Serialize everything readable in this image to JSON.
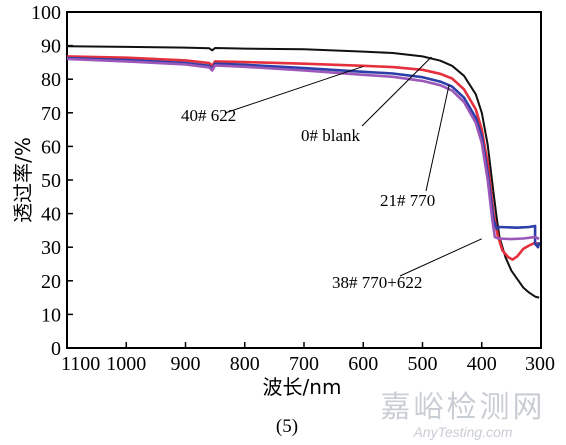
{
  "chart_data": {
    "type": "line",
    "xlabel": "波长/nm",
    "ylabel": "透过率/%",
    "caption": "(5)",
    "xlim": [
      1100,
      300
    ],
    "ylim": [
      0,
      100
    ],
    "xticks": [
      1100,
      1000,
      900,
      800,
      700,
      600,
      500,
      400,
      300
    ],
    "yticks": [
      0,
      10,
      20,
      30,
      40,
      50,
      60,
      70,
      80,
      90,
      100
    ],
    "grid": false,
    "series": [
      {
        "name": "0# blank",
        "color": "#111111",
        "points": [
          [
            1100,
            89.8
          ],
          [
            1000,
            89.6
          ],
          [
            900,
            89.4
          ],
          [
            860,
            89.2
          ],
          [
            855,
            88.6
          ],
          [
            850,
            89.3
          ],
          [
            800,
            89.1
          ],
          [
            700,
            88.9
          ],
          [
            600,
            88.2
          ],
          [
            550,
            87.8
          ],
          [
            500,
            86.8
          ],
          [
            470,
            85.5
          ],
          [
            450,
            84.0
          ],
          [
            430,
            81.0
          ],
          [
            410,
            75.5
          ],
          [
            400,
            70.0
          ],
          [
            390,
            60.5
          ],
          [
            380,
            46.0
          ],
          [
            375,
            39.0
          ],
          [
            370,
            33.0
          ],
          [
            360,
            27.0
          ],
          [
            350,
            23.0
          ],
          [
            340,
            20.5
          ],
          [
            330,
            18.0
          ],
          [
            320,
            16.5
          ],
          [
            310,
            15.3
          ],
          [
            303,
            15.0
          ]
        ]
      },
      {
        "name": "40# 622",
        "color": "#e5303d",
        "points": [
          [
            1100,
            86.8
          ],
          [
            1000,
            86.4
          ],
          [
            900,
            85.6
          ],
          [
            860,
            84.8
          ],
          [
            855,
            84.0
          ],
          [
            850,
            85.3
          ],
          [
            800,
            85.1
          ],
          [
            700,
            84.6
          ],
          [
            600,
            84.0
          ],
          [
            550,
            83.6
          ],
          [
            500,
            82.8
          ],
          [
            470,
            81.6
          ],
          [
            450,
            80.2
          ],
          [
            430,
            77.0
          ],
          [
            410,
            71.0
          ],
          [
            400,
            65.0
          ],
          [
            390,
            55.0
          ],
          [
            380,
            40.0
          ],
          [
            373,
            33.5
          ],
          [
            365,
            29.0
          ],
          [
            355,
            27.0
          ],
          [
            348,
            26.3
          ],
          [
            340,
            27.3
          ],
          [
            330,
            29.5
          ],
          [
            320,
            30.5
          ],
          [
            310,
            31.3
          ],
          [
            303,
            30.8
          ]
        ]
      },
      {
        "name": "21# 770",
        "color": "#2c3ea8",
        "points": [
          [
            1100,
            86.3
          ],
          [
            1000,
            85.7
          ],
          [
            900,
            84.8
          ],
          [
            860,
            84.0
          ],
          [
            855,
            83.0
          ],
          [
            850,
            84.6
          ],
          [
            800,
            84.3
          ],
          [
            700,
            83.3
          ],
          [
            600,
            82.2
          ],
          [
            550,
            81.7
          ],
          [
            500,
            80.6
          ],
          [
            470,
            79.3
          ],
          [
            450,
            77.8
          ],
          [
            430,
            74.5
          ],
          [
            410,
            68.5
          ],
          [
            400,
            63.0
          ],
          [
            390,
            52.0
          ],
          [
            380,
            38.0
          ],
          [
            375,
            35.5
          ],
          [
            370,
            36.0
          ],
          [
            340,
            35.8
          ],
          [
            320,
            36.0
          ],
          [
            310,
            36.3
          ],
          [
            310,
            31.0
          ],
          [
            305,
            30.0
          ],
          [
            303,
            31.5
          ]
        ]
      },
      {
        "name": "38# 770+622",
        "color": "#9b58b8",
        "points": [
          [
            1100,
            86.0
          ],
          [
            1000,
            85.3
          ],
          [
            900,
            84.4
          ],
          [
            860,
            83.5
          ],
          [
            855,
            82.6
          ],
          [
            850,
            84.1
          ],
          [
            800,
            83.7
          ],
          [
            700,
            82.6
          ],
          [
            600,
            81.3
          ],
          [
            550,
            80.7
          ],
          [
            500,
            79.5
          ],
          [
            470,
            78.2
          ],
          [
            450,
            76.6
          ],
          [
            430,
            73.2
          ],
          [
            410,
            67.0
          ],
          [
            400,
            61.0
          ],
          [
            390,
            50.0
          ],
          [
            382,
            38.0
          ],
          [
            378,
            33.0
          ],
          [
            372,
            32.6
          ],
          [
            350,
            32.4
          ],
          [
            330,
            32.6
          ],
          [
            310,
            33.0
          ],
          [
            303,
            32.5
          ]
        ]
      }
    ],
    "annotations": [
      {
        "text": "40# 622",
        "points_to": [
          600,
          83.8
        ]
      },
      {
        "text": "0# blank",
        "points_to": [
          485,
          86.6
        ]
      },
      {
        "text": "21# 770",
        "points_to": [
          455,
          78.4
        ]
      },
      {
        "text": "38# 770+622",
        "points_to": [
          400,
          32.5
        ]
      }
    ]
  },
  "watermark": {
    "cn": "嘉峪检测网",
    "en": "AnyTesting.com"
  }
}
